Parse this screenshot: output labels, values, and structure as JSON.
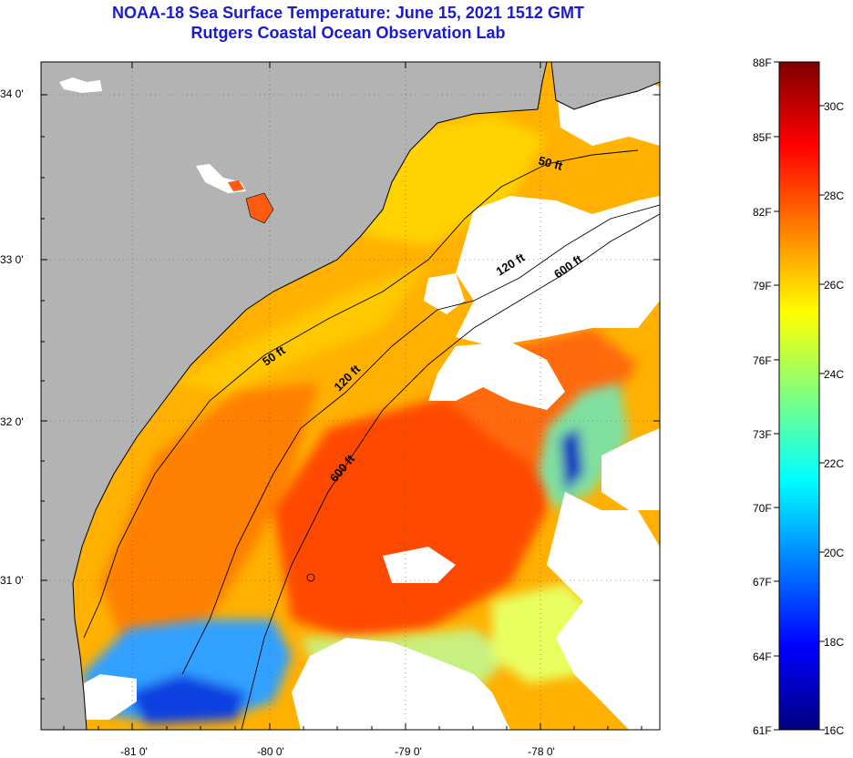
{
  "title": {
    "line1": "NOAA-18 Sea Surface Temperature:  June 15, 2021 1512 GMT",
    "line2": "Rutgers Coastal Ocean Observation Lab"
  },
  "map": {
    "lat_labels": [
      "34 0'",
      "33 0'",
      "32 0'",
      "31 0'"
    ],
    "lon_labels": [
      "-81 0'",
      "-80 0'",
      "-79 0'",
      "-78 0'"
    ],
    "contour_labels": [
      "50 ft",
      "50 ft",
      "120 ft",
      "120 ft",
      "600 ft",
      "600 ft"
    ],
    "colors": {
      "land": "#b3b3b3",
      "cloud": "#ffffff",
      "coastline": "#000000"
    }
  },
  "colorbar": {
    "f_labels": [
      "88F",
      "85F",
      "82F",
      "79F",
      "76F",
      "73F",
      "70F",
      "67F",
      "64F",
      "61F"
    ],
    "c_labels": [
      "30C",
      "28C",
      "26C",
      "24C",
      "22C",
      "20C",
      "18C",
      "16C"
    ],
    "colors": [
      "#00007f",
      "#0000ff",
      "#007fff",
      "#00ffff",
      "#7fff7f",
      "#ffff00",
      "#ff7f00",
      "#ff0000",
      "#7f0000"
    ]
  }
}
